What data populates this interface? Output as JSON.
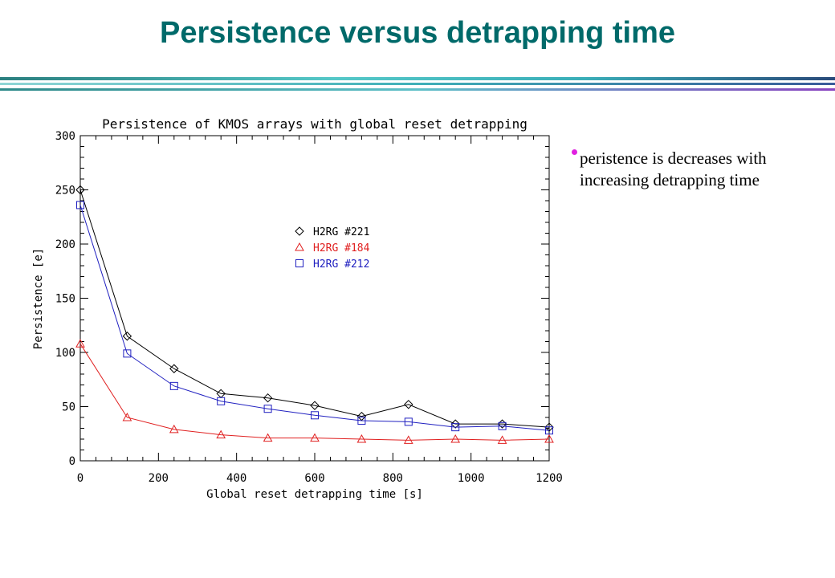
{
  "slide": {
    "title": "Persistence versus detrapping time",
    "bullet": "peristence is decreases with increasing detrapping time"
  },
  "colors": {
    "title": "#006a6a",
    "bullet": "#e020e0"
  },
  "chart_data": {
    "type": "line",
    "title": "Persistence of KMOS arrays with global reset detrapping",
    "xlabel": "Global reset detrapping time [s]",
    "ylabel": "Persistence [e]",
    "xlim": [
      0,
      1200
    ],
    "ylim": [
      0,
      300
    ],
    "xticks": [
      0,
      200,
      400,
      600,
      800,
      1000,
      1200
    ],
    "yticks": [
      0,
      50,
      100,
      150,
      200,
      250,
      300
    ],
    "grid": false,
    "legend_position": "center",
    "x": [
      0,
      120,
      240,
      360,
      480,
      600,
      720,
      840,
      960,
      1080,
      1200
    ],
    "series": [
      {
        "name": "H2RG #221",
        "marker": "diamond",
        "color": "#000000",
        "values": [
          250,
          115,
          85,
          62,
          58,
          51,
          41,
          52,
          34,
          34,
          31
        ]
      },
      {
        "name": "H2RG #184",
        "marker": "triangle",
        "color": "#e02020",
        "values": [
          108,
          40,
          29,
          24,
          21,
          21,
          20,
          19,
          20,
          19,
          20
        ]
      },
      {
        "name": "H2RG #212",
        "marker": "square",
        "color": "#2020c0",
        "values": [
          236,
          99,
          69,
          55,
          48,
          42,
          37,
          36,
          31,
          32,
          28
        ]
      }
    ]
  }
}
